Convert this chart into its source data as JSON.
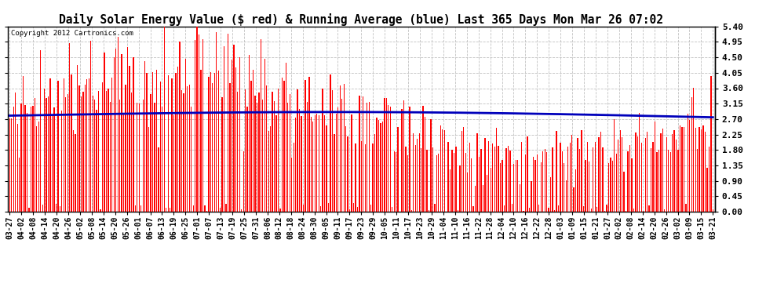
{
  "title": "Daily Solar Energy Value ($ red) & Running Average (blue) Last 365 Days Mon Mar 26 07:02",
  "copyright_text": "Copyright 2012 Cartronics.com",
  "yticks": [
    0.0,
    0.45,
    0.9,
    1.35,
    1.8,
    2.25,
    2.7,
    3.15,
    3.6,
    4.05,
    4.5,
    4.95,
    5.4
  ],
  "ylim": [
    0.0,
    5.4
  ],
  "bar_color": "#ff0000",
  "avg_color": "#0000bb",
  "background_color": "#ffffff",
  "grid_color": "#bbbbbb",
  "title_fontsize": 10.5,
  "x_labels": [
    "03-27",
    "04-02",
    "04-08",
    "04-14",
    "04-20",
    "04-26",
    "05-02",
    "05-08",
    "05-14",
    "05-20",
    "05-26",
    "06-01",
    "06-07",
    "06-13",
    "06-19",
    "06-25",
    "07-01",
    "07-07",
    "07-13",
    "07-19",
    "07-25",
    "07-31",
    "08-06",
    "08-12",
    "08-18",
    "08-24",
    "08-30",
    "09-05",
    "09-11",
    "09-17",
    "09-23",
    "09-29",
    "10-05",
    "10-11",
    "10-17",
    "10-23",
    "10-29",
    "11-04",
    "11-10",
    "11-16",
    "11-22",
    "11-28",
    "12-04",
    "12-10",
    "12-16",
    "12-22",
    "12-28",
    "01-03",
    "01-09",
    "01-15",
    "01-21",
    "01-27",
    "02-02",
    "02-08",
    "02-14",
    "02-20",
    "02-26",
    "03-02",
    "03-09",
    "03-15",
    "03-21"
  ],
  "n_days": 365,
  "bar_width": 0.55
}
